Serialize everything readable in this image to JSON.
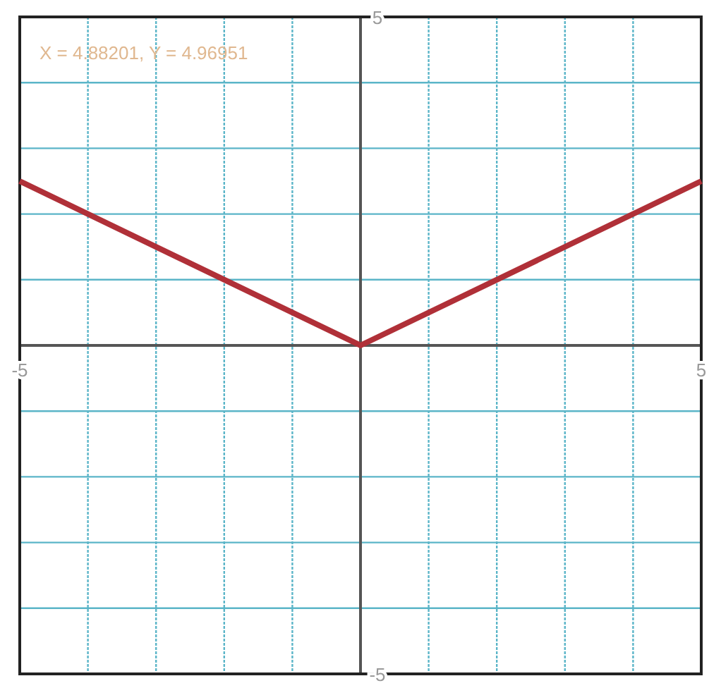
{
  "chart_data": {
    "type": "line",
    "x": [
      -5,
      0,
      5
    ],
    "series": [
      {
        "color": "#b03038",
        "values": [
          2.5,
          0,
          2.5
        ]
      }
    ],
    "xlim": [
      -5,
      5
    ],
    "ylim": [
      -5,
      5
    ],
    "xticks": [
      -5,
      {
        "value": -4,
        "label": null
      },
      {
        "value": -3,
        "label": null
      },
      {
        "value": -2,
        "label": null
      },
      {
        "value": -1,
        "label": null
      },
      {
        "value": 0,
        "label": null
      },
      {
        "value": 1,
        "label": null
      },
      {
        "value": 2,
        "label": null
      },
      {
        "value": 3,
        "label": null
      },
      {
        "value": 4,
        "label": null
      },
      5
    ],
    "yticks": [
      -5,
      {
        "value": -4,
        "label": null
      },
      {
        "value": -3,
        "label": null
      },
      {
        "value": -2,
        "label": null
      },
      {
        "value": -1,
        "label": null
      },
      {
        "value": 0,
        "label": null
      },
      {
        "value": 1,
        "label": null
      },
      {
        "value": 2,
        "label": null
      },
      {
        "value": 3,
        "label": null
      },
      {
        "value": 4,
        "label": null
      },
      5
    ],
    "grid": true,
    "marker": "none",
    "line_style": "solid",
    "annotations": [
      "X = 4.88201, Y = 4.96951"
    ]
  }
}
